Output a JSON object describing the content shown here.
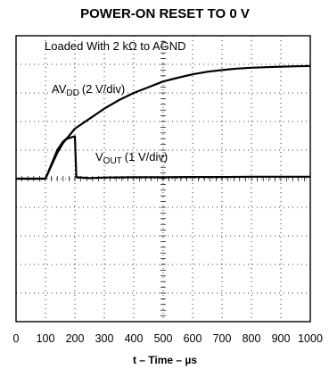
{
  "chart_data": {
    "type": "line",
    "title": "POWER-ON RESET TO 0 V",
    "xlabel": "t – Time – µs",
    "xlim": [
      0,
      1000
    ],
    "ylim": [
      -5,
      5
    ],
    "x_ticks": [
      "0",
      "100",
      "200",
      "300",
      "400",
      "500",
      "600",
      "700",
      "800",
      "900",
      "1000"
    ],
    "grid": true,
    "annotations": {
      "load": "Loaded With 2 kΩ to AGND",
      "avdd_main": "AV",
      "avdd_sub": "DD",
      "avdd_scale": "(2 V/div)",
      "vout_main": "V",
      "vout_sub": "OUT",
      "vout_scale": "(1 V/div)"
    },
    "series": [
      {
        "name": "AVDD",
        "color": "#000000",
        "x": [
          0,
          100,
          120,
          140,
          160,
          180,
          200,
          250,
          300,
          350,
          400,
          450,
          500,
          550,
          600,
          650,
          700,
          750,
          800,
          850,
          900,
          950,
          1000
        ],
        "y": [
          0,
          0,
          0.45,
          0.9,
          1.25,
          1.5,
          1.75,
          2.1,
          2.45,
          2.75,
          3.0,
          3.2,
          3.4,
          3.53,
          3.65,
          3.74,
          3.8,
          3.85,
          3.88,
          3.9,
          3.92,
          3.93,
          3.94
        ]
      },
      {
        "name": "VOUT",
        "color": "#000000",
        "x": [
          0,
          100,
          120,
          140,
          160,
          170,
          180,
          190,
          200,
          205,
          250,
          300,
          400,
          500,
          600,
          700,
          800,
          900,
          1000
        ],
        "y": [
          0,
          0,
          0.5,
          1.0,
          1.3,
          1.38,
          1.42,
          1.45,
          1.48,
          0.05,
          0.02,
          0.04,
          0.05,
          0.05,
          0.06,
          0.06,
          0.07,
          0.07,
          0.07
        ]
      }
    ]
  }
}
